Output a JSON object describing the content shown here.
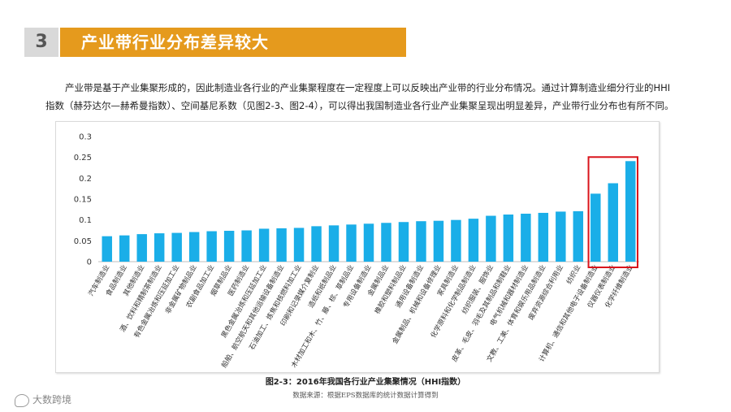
{
  "section": {
    "number": "3",
    "title": "产业带行业分布差异较大"
  },
  "intro_text": "产业带是基于产业集聚形成的，因此制造业各行业的产业集聚程度在一定程度上可以反映出产业带的行业分布情况。通过计算制造业细分行业的HHI指数（赫芬达尔—赫希曼指数）、空间基尼系数（见图2-3、图2-4），可以得出我国制造业各行业产业集聚呈现出明显差异，产业带行业分布也有所不同。",
  "caption": "图2-3：2016年我国各行业产业集聚情况（HHI指数）",
  "source": "数据来源：根据EPS数据库的统计数据计算得到",
  "brand": "大数跨境",
  "colors": {
    "bar": "#1aaee8",
    "highlight_box": "#d9141b",
    "header_orange": "#e59a1d"
  },
  "chart_data": {
    "type": "bar",
    "title": "",
    "xlabel": "",
    "ylabel": "",
    "ylim": [
      0,
      0.3
    ],
    "yticks": [
      "0",
      "0.05",
      "0.1",
      "0.15",
      "0.2",
      "0.25",
      "0.3"
    ],
    "grid": false,
    "categories": [
      "汽车制造业",
      "食品制造业",
      "其他制造业",
      "酒、饮料和精制茶制造业",
      "有色金属冶炼和压延加工业",
      "非金属矿物制品业",
      "农副食品加工业",
      "烟草制品业",
      "医药制造业",
      "黑色金属冶炼和压延加工业",
      "铁路、船舶、航空航天和其他运输设备制造业",
      "石油加工、炼焦和核燃料加工业",
      "印刷和记录媒介复制业",
      "造纸和纸制品业",
      "木材加工和木、竹、藤、棕、草制品业",
      "专用设备制造业",
      "金属制品业",
      "橡胶和塑料制品业",
      "通用设备制造业",
      "金属制品、机械和设备修理业",
      "家具制造业",
      "化学原料和化学制品制造业",
      "纺织服装、服饰业",
      "皮革、毛皮、羽毛及其制品和制鞋业",
      "电气机械和器材制造业",
      "文教、工美、体育和娱乐用品制造业",
      "废弃资源综合利用业",
      "纺织业",
      "计算机、通信和其他电子设备制造业",
      "仪器仪表制造业",
      "化学纤维制造业"
    ],
    "values": [
      0.061,
      0.063,
      0.066,
      0.068,
      0.069,
      0.071,
      0.073,
      0.074,
      0.075,
      0.079,
      0.08,
      0.081,
      0.085,
      0.087,
      0.089,
      0.091,
      0.093,
      0.095,
      0.097,
      0.098,
      0.1,
      0.103,
      0.11,
      0.113,
      0.115,
      0.117,
      0.12,
      0.121,
      0.163,
      0.188,
      0.241
    ],
    "highlighted_categories": [
      "计算机、通信和其他电子设备制造业",
      "仪器仪表制造业",
      "化学纤维制造业"
    ]
  }
}
